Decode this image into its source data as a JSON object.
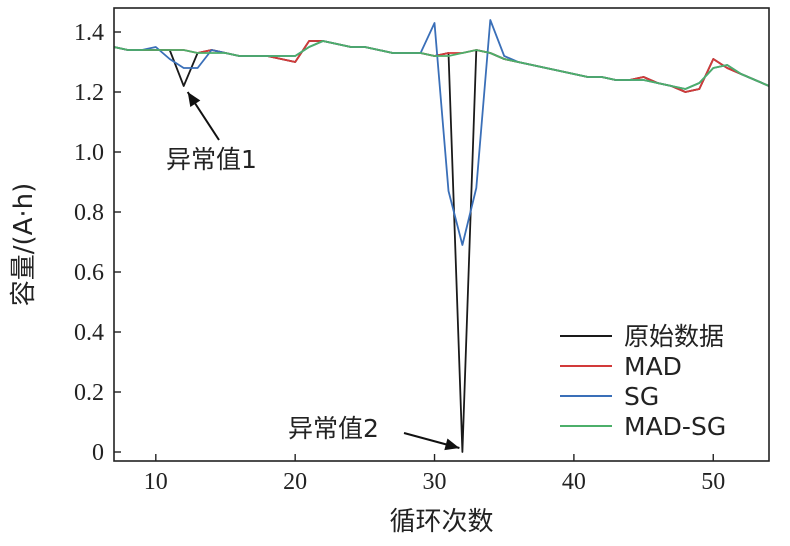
{
  "chart_data": {
    "type": "line",
    "xlabel": "循环次数",
    "ylabel": "容量/(A·h)",
    "xlim": [
      7,
      54
    ],
    "ylim": [
      -0.03,
      1.48
    ],
    "x_ticks": [
      10,
      20,
      30,
      40,
      50
    ],
    "x_tick_labels": [
      "10",
      "20",
      "30",
      "40",
      "50"
    ],
    "y_ticks": [
      0,
      0.2,
      0.4,
      0.6,
      0.8,
      1.0,
      1.2,
      1.4
    ],
    "y_tick_labels": [
      "0",
      "0.2",
      "0.4",
      "0.6",
      "0.8",
      "1.0",
      "1.2",
      "1.4"
    ],
    "grid": false,
    "legend_position": "bottom-right",
    "x": [
      7,
      8,
      9,
      10,
      11,
      12,
      13,
      14,
      15,
      16,
      17,
      18,
      19,
      20,
      21,
      22,
      23,
      24,
      25,
      26,
      27,
      28,
      29,
      30,
      31,
      32,
      33,
      34,
      35,
      36,
      37,
      38,
      39,
      40,
      41,
      42,
      43,
      44,
      45,
      46,
      47,
      48,
      49,
      50,
      51,
      52,
      53,
      54
    ],
    "series": [
      {
        "name": "原始数据",
        "color": "#1a1a1a",
        "values": [
          1.35,
          1.34,
          1.34,
          1.34,
          1.34,
          1.22,
          1.33,
          1.34,
          1.33,
          1.32,
          1.32,
          1.32,
          1.31,
          1.3,
          1.37,
          1.37,
          1.36,
          1.35,
          1.35,
          1.34,
          1.33,
          1.33,
          1.33,
          1.32,
          1.33,
          0.0,
          1.34,
          1.33,
          1.31,
          1.3,
          1.29,
          1.28,
          1.27,
          1.26,
          1.25,
          1.25,
          1.24,
          1.24,
          1.25,
          1.23,
          1.22,
          1.2,
          1.21,
          1.31,
          1.28,
          1.26,
          1.24,
          1.22
        ]
      },
      {
        "name": "MAD",
        "color": "#d23a3a",
        "values": [
          1.35,
          1.34,
          1.34,
          1.34,
          1.34,
          1.34,
          1.33,
          1.34,
          1.33,
          1.32,
          1.32,
          1.32,
          1.31,
          1.3,
          1.37,
          1.37,
          1.36,
          1.35,
          1.35,
          1.34,
          1.33,
          1.33,
          1.33,
          1.32,
          1.33,
          1.33,
          1.34,
          1.33,
          1.31,
          1.3,
          1.29,
          1.28,
          1.27,
          1.26,
          1.25,
          1.25,
          1.24,
          1.24,
          1.25,
          1.23,
          1.22,
          1.2,
          1.21,
          1.31,
          1.28,
          1.26,
          1.24,
          1.22
        ]
      },
      {
        "name": "SG",
        "color": "#3a6fb8",
        "values": [
          1.35,
          1.34,
          1.34,
          1.35,
          1.31,
          1.28,
          1.28,
          1.34,
          1.33,
          1.32,
          1.32,
          1.32,
          1.32,
          1.32,
          1.35,
          1.37,
          1.36,
          1.35,
          1.35,
          1.34,
          1.33,
          1.33,
          1.33,
          1.43,
          0.87,
          0.69,
          0.88,
          1.44,
          1.32,
          1.3,
          1.29,
          1.28,
          1.27,
          1.26,
          1.25,
          1.25,
          1.24,
          1.24,
          1.24,
          1.23,
          1.22,
          1.21,
          1.23,
          1.28,
          1.29,
          1.26,
          1.24,
          1.22
        ]
      },
      {
        "name": "MAD-SG",
        "color": "#4caf6a",
        "values": [
          1.35,
          1.34,
          1.34,
          1.34,
          1.34,
          1.34,
          1.33,
          1.33,
          1.33,
          1.32,
          1.32,
          1.32,
          1.32,
          1.32,
          1.35,
          1.37,
          1.36,
          1.35,
          1.35,
          1.34,
          1.33,
          1.33,
          1.33,
          1.32,
          1.32,
          1.33,
          1.34,
          1.33,
          1.31,
          1.3,
          1.29,
          1.28,
          1.27,
          1.26,
          1.25,
          1.25,
          1.24,
          1.24,
          1.24,
          1.23,
          1.22,
          1.21,
          1.23,
          1.28,
          1.29,
          1.26,
          1.24,
          1.22
        ]
      }
    ],
    "annotations": [
      {
        "id": "anomaly-1",
        "text": "异常值1",
        "x": 12,
        "y": 1.22
      },
      {
        "id": "anomaly-2",
        "text": "异常值2",
        "x": 32,
        "y": 0.0
      }
    ]
  }
}
